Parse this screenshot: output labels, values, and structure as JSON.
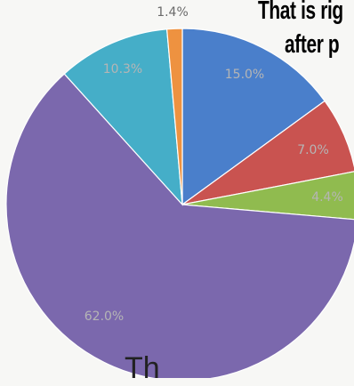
{
  "chart_data": {
    "type": "pie",
    "title": "",
    "start_angle_deg": 0,
    "direction": "clockwise",
    "legend": "none",
    "slices": [
      {
        "label": "15.0%",
        "value": 15.0,
        "color": "#4a7fcb"
      },
      {
        "label": "7.0%",
        "value": 7.0,
        "color": "#c95350"
      },
      {
        "label": "4.4%",
        "value": 4.4,
        "color": "#90bb4f"
      },
      {
        "label": "62.0%",
        "value": 62.0,
        "color": "#7b68ad"
      },
      {
        "label": "10.3%",
        "value": 10.3,
        "color": "#45aec8"
      },
      {
        "label": "1.4%",
        "value": 1.4,
        "color": "#ee9240"
      }
    ],
    "label_color": "#b5b5b5",
    "label_color_top": "#6a6a6a"
  },
  "overlay": {
    "headline_line1": "That is rig",
    "headline_line2": "after p",
    "bottom_text": "Th"
  }
}
